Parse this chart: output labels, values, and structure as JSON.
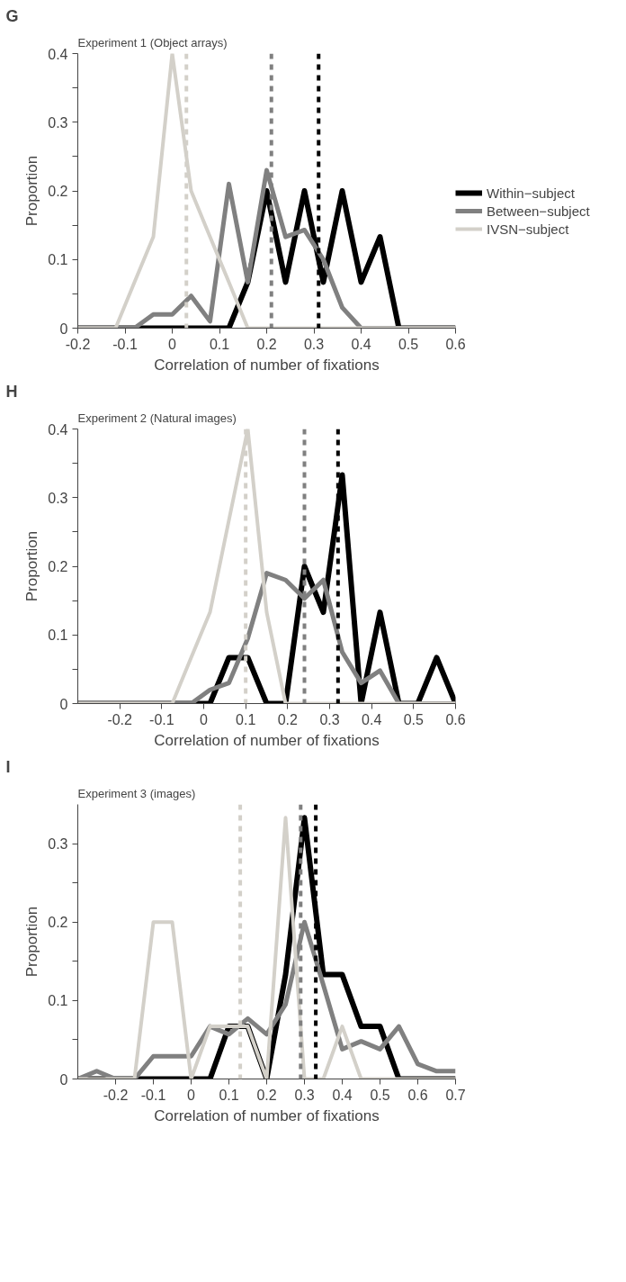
{
  "chart_data": [
    {
      "type": "line",
      "annotations": [
        "G"
      ],
      "title": "Experiment 1 (Object arrays)",
      "xlabel": "Correlation of number of fixations",
      "ylabel": "Proportion",
      "x": [
        -0.2,
        -0.16,
        -0.12,
        -0.08,
        -0.04,
        0,
        0.04,
        0.08,
        0.12,
        0.16,
        0.2,
        0.24,
        0.28,
        0.32,
        0.36,
        0.4,
        0.44,
        0.48,
        0.52,
        0.56,
        0.6
      ],
      "series": [
        {
          "name": "Within−subject",
          "color": "#000000",
          "values": [
            0,
            0,
            0,
            0,
            0,
            0,
            0,
            0,
            0,
            0.067,
            0.2,
            0.067,
            0.2,
            0.067,
            0.2,
            0.067,
            0.133,
            0,
            0,
            0,
            0
          ]
        },
        {
          "name": "Between−subject",
          "color": "#808080",
          "values": [
            0,
            0,
            0,
            0,
            0.02,
            0.02,
            0.047,
            0.01,
            0.21,
            0.067,
            0.23,
            0.133,
            0.143,
            0.1,
            0.03,
            0,
            0,
            0,
            0,
            0,
            0
          ]
        },
        {
          "name": "IVSN−subject",
          "color": "#d3d0c9",
          "values": [
            0,
            0,
            0,
            0.067,
            0.133,
            0.4,
            0.2,
            0.133,
            0.067,
            0,
            0,
            0,
            0,
            0,
            0,
            0,
            0,
            0,
            0,
            0,
            0
          ]
        }
      ],
      "ref_lines": [
        {
          "axis": "x",
          "value": 0.31,
          "color": "#000000",
          "line_style": "dashed"
        },
        {
          "axis": "x",
          "value": 0.21,
          "color": "#808080",
          "line_style": "dashed"
        },
        {
          "axis": "x",
          "value": 0.03,
          "color": "#d3d0c9",
          "line_style": "dashed"
        }
      ],
      "xlim": [
        -0.2,
        0.6
      ],
      "xticks": [
        -0.2,
        -0.1,
        0,
        0.1,
        0.2,
        0.3,
        0.4,
        0.5,
        0.6
      ],
      "ylim": [
        0,
        0.4
      ],
      "yticks": [
        0,
        {
          "value": 0.05,
          "label": null
        },
        0.1,
        {
          "value": 0.15,
          "label": null
        },
        0.2,
        {
          "value": 0.25,
          "label": null
        },
        0.3,
        {
          "value": 0.35,
          "label": null
        },
        0.4
      ],
      "grid": false,
      "legend": "right",
      "marker": "none",
      "line_style": "solid"
    },
    {
      "type": "line",
      "annotations": [
        "H"
      ],
      "title": "Experiment 2 (Natural images)",
      "xlabel": "Correlation of number of fixations",
      "ylabel": "Proportion",
      "x": [
        -0.3,
        -0.255,
        -0.21,
        -0.165,
        -0.12,
        -0.075,
        -0.03,
        0.015,
        0.06,
        0.105,
        0.15,
        0.195,
        0.24,
        0.285,
        0.33,
        0.375,
        0.42,
        0.465,
        0.51,
        0.555,
        0.6
      ],
      "series": [
        {
          "color": "#000000",
          "values": [
            0,
            0,
            0,
            0,
            0,
            0,
            0,
            0,
            0.067,
            0.067,
            0,
            0,
            0.2,
            0.133,
            0.333,
            0,
            0.133,
            0,
            0,
            0.067,
            0
          ]
        },
        {
          "color": "#808080",
          "values": [
            0,
            0,
            0,
            0,
            0,
            0,
            0,
            0.02,
            0.03,
            0.095,
            0.19,
            0.18,
            0.153,
            0.18,
            0.075,
            0.03,
            0.048,
            0,
            0,
            0,
            0
          ]
        },
        {
          "color": "#d3d0c9",
          "values": [
            0,
            0,
            0,
            0,
            0,
            0,
            0.067,
            0.133,
            0.267,
            0.4,
            0.133,
            0,
            0,
            0,
            0,
            0,
            0,
            0,
            0,
            0,
            0
          ]
        }
      ],
      "ref_lines": [
        {
          "axis": "x",
          "value": 0.32,
          "color": "#000000",
          "line_style": "dashed"
        },
        {
          "axis": "x",
          "value": 0.24,
          "color": "#808080",
          "line_style": "dashed"
        },
        {
          "axis": "x",
          "value": 0.1,
          "color": "#d3d0c9",
          "line_style": "dashed"
        }
      ],
      "xlim": [
        -0.3,
        0.6
      ],
      "xticks": [
        -0.2,
        -0.1,
        0,
        0.1,
        0.2,
        0.3,
        0.4,
        0.5,
        0.6
      ],
      "ylim": [
        0,
        0.4
      ],
      "yticks": [
        0,
        {
          "value": 0.05,
          "label": null
        },
        0.1,
        {
          "value": 0.15,
          "label": null
        },
        0.2,
        {
          "value": 0.25,
          "label": null
        },
        0.3,
        {
          "value": 0.35,
          "label": null
        },
        0.4
      ],
      "grid": false,
      "marker": "none",
      "line_style": "solid"
    },
    {
      "type": "line",
      "annotations": [
        "I"
      ],
      "title": "Experiment 3 (images)",
      "xlabel": "Correlation of number of fixations",
      "ylabel": "Proportion",
      "x": [
        -0.3,
        -0.25,
        -0.2,
        -0.15,
        -0.1,
        -0.05,
        0,
        0.05,
        0.1,
        0.15,
        0.2,
        0.25,
        0.3,
        0.35,
        0.4,
        0.45,
        0.5,
        0.55,
        0.6,
        0.65,
        0.7
      ],
      "series": [
        {
          "color": "#000000",
          "values": [
            0,
            0,
            0,
            0,
            0,
            0,
            0,
            0,
            0.067,
            0.067,
            0,
            0.133,
            0.333,
            0.133,
            0.133,
            0.067,
            0.067,
            0,
            0,
            0,
            0
          ]
        },
        {
          "color": "#808080",
          "values": [
            0,
            0.01,
            0,
            0,
            0.029,
            0.029,
            0.029,
            0.067,
            0.057,
            0.077,
            0.057,
            0.095,
            0.2,
            0.12,
            0.038,
            0.048,
            0.038,
            0.067,
            0.019,
            0.01,
            0.01
          ]
        },
        {
          "color": "#d3d0c9",
          "values": [
            0,
            0,
            0,
            0,
            0.2,
            0.2,
            0,
            0.067,
            0.067,
            0.067,
            0,
            0.333,
            0,
            0,
            0.067,
            0,
            0,
            0,
            0,
            0,
            0
          ]
        }
      ],
      "ref_lines": [
        {
          "axis": "x",
          "value": 0.33,
          "color": "#000000",
          "line_style": "dashed"
        },
        {
          "axis": "x",
          "value": 0.29,
          "color": "#808080",
          "line_style": "dashed"
        },
        {
          "axis": "x",
          "value": 0.13,
          "color": "#d3d0c9",
          "line_style": "dashed"
        }
      ],
      "xlim": [
        -0.3,
        0.7
      ],
      "xticks": [
        -0.2,
        -0.1,
        0,
        0.1,
        0.2,
        0.3,
        0.4,
        0.5,
        0.6,
        0.7
      ],
      "ylim": [
        0,
        0.35
      ],
      "yticks": [
        0,
        {
          "value": 0.05,
          "label": null
        },
        0.1,
        {
          "value": 0.15,
          "label": null
        },
        0.2,
        {
          "value": 0.25,
          "label": null
        },
        0.3
      ],
      "grid": false,
      "marker": "none",
      "line_style": "solid"
    }
  ]
}
